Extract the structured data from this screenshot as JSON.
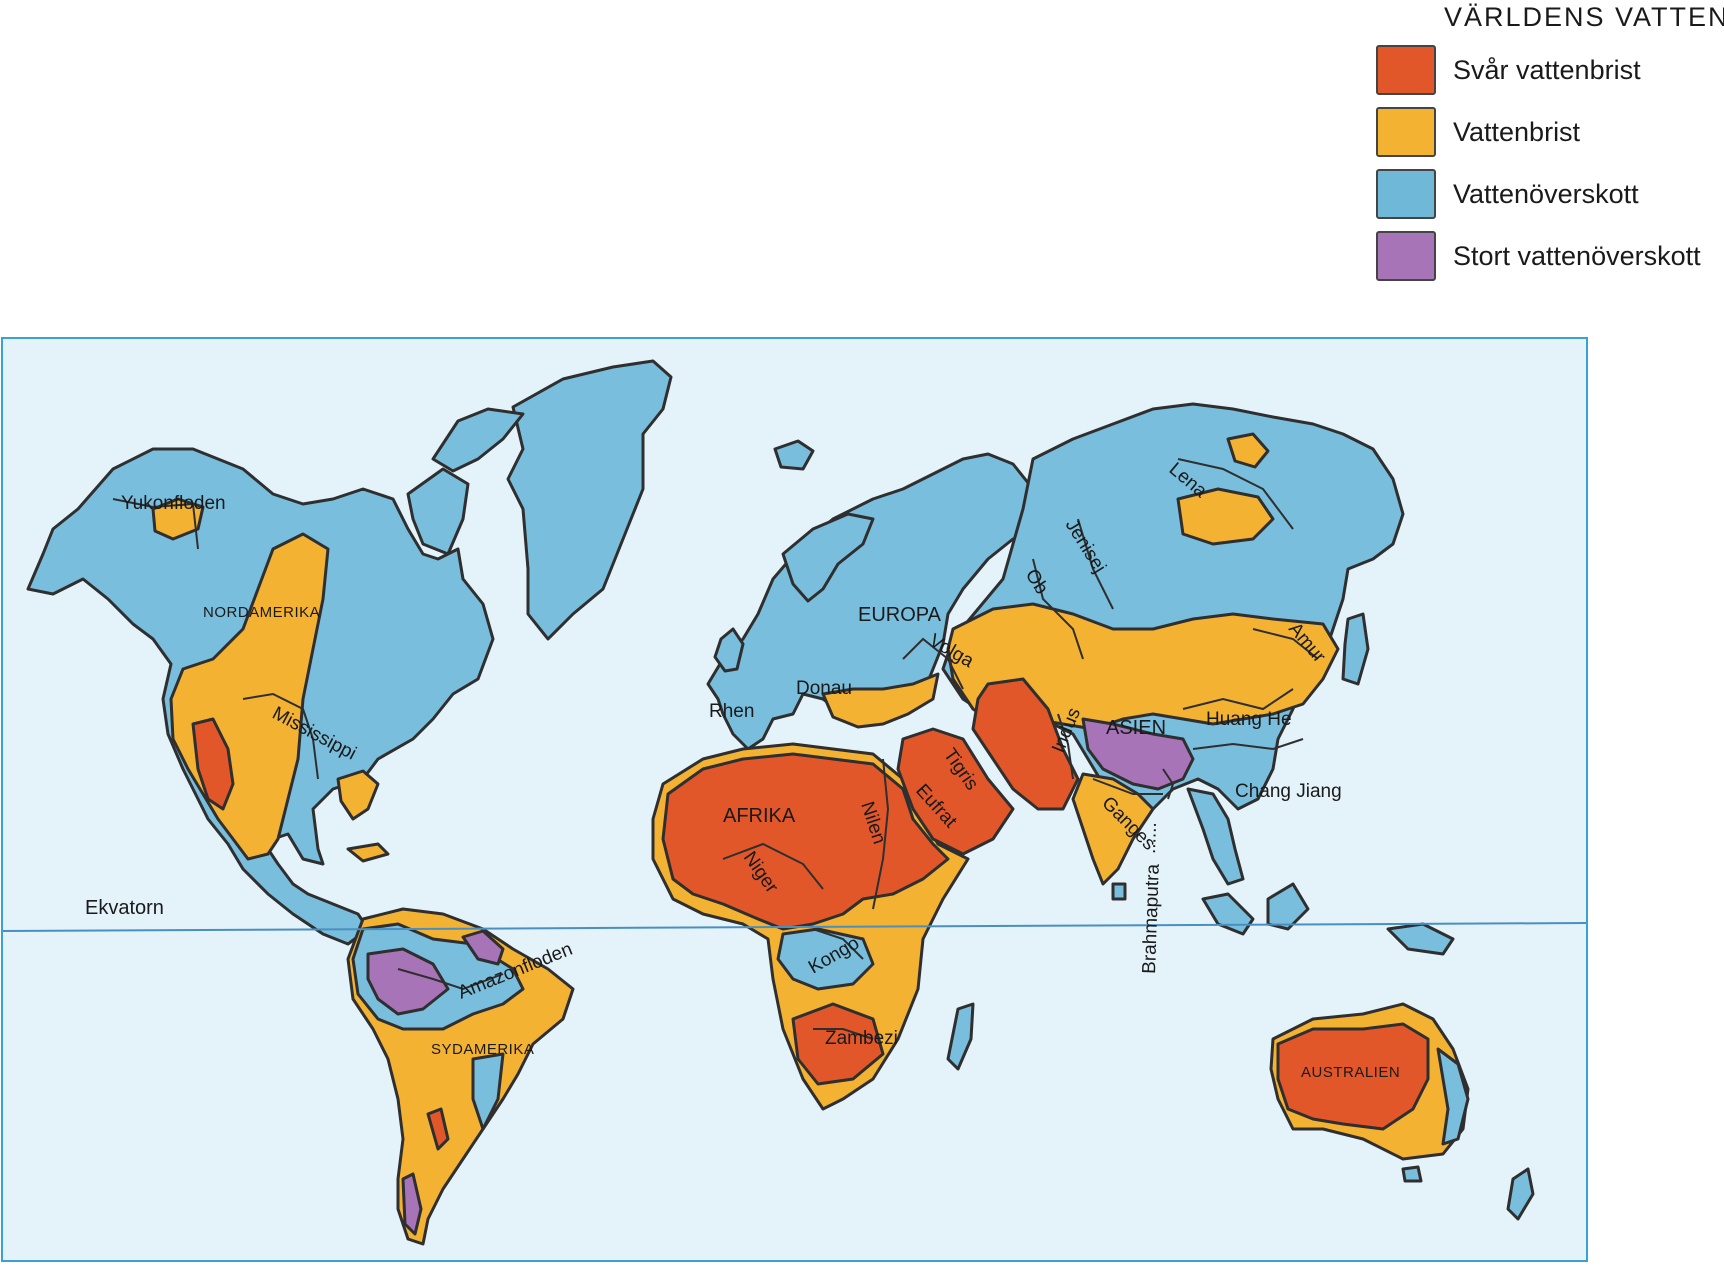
{
  "legend": {
    "title": "VÄRLDENS VATTEN",
    "items": [
      {
        "label": "Svår vattenbrist",
        "color": "#e2572a"
      },
      {
        "label": "Vattenbrist",
        "color": "#f4b233"
      },
      {
        "label": "Vattenöverskott",
        "color": "#6fb8d8"
      },
      {
        "label": "Stort vattenöverskott",
        "color": "#a774b8"
      }
    ]
  },
  "colors": {
    "ocean": "#e4f2fa",
    "frame": "#3aa2d3",
    "equator": "#4a8fc0",
    "severe_shortage": "#e2572a",
    "shortage": "#f4b233",
    "surplus": "#79bedd",
    "large_surplus": "#a774b8",
    "outline": "#2f2f2f"
  },
  "map": {
    "equator_label": "Ekvatorn",
    "continents": {
      "north_america": "NORDAMERIKA",
      "south_america": "SYDAMERIKA",
      "europe": "EUROPA",
      "africa": "AFRIKA",
      "asia": "ASIEN",
      "australia": "AUSTRALIEN"
    },
    "rivers": {
      "yukon": "Yukonfloden",
      "mississippi": "Mississippi",
      "amazon": "Amazonfloden",
      "rhen": "Rhen",
      "donau": "Donau",
      "volga": "Volga",
      "tigris": "Tigris",
      "eufrat": "Eufrat",
      "nilen": "Nilen",
      "niger": "Niger",
      "kongo": "Kongo",
      "zambezi": "Zambezi",
      "ob": "Ob",
      "jenisej": "Jenisej",
      "lena": "Lena",
      "amur": "Amur",
      "huang_he": "Huang He",
      "chang_jiang": "Chang Jiang",
      "indus": "Indus",
      "ganges": "Ganges",
      "brahmaputra": "Brahmaputra"
    }
  }
}
